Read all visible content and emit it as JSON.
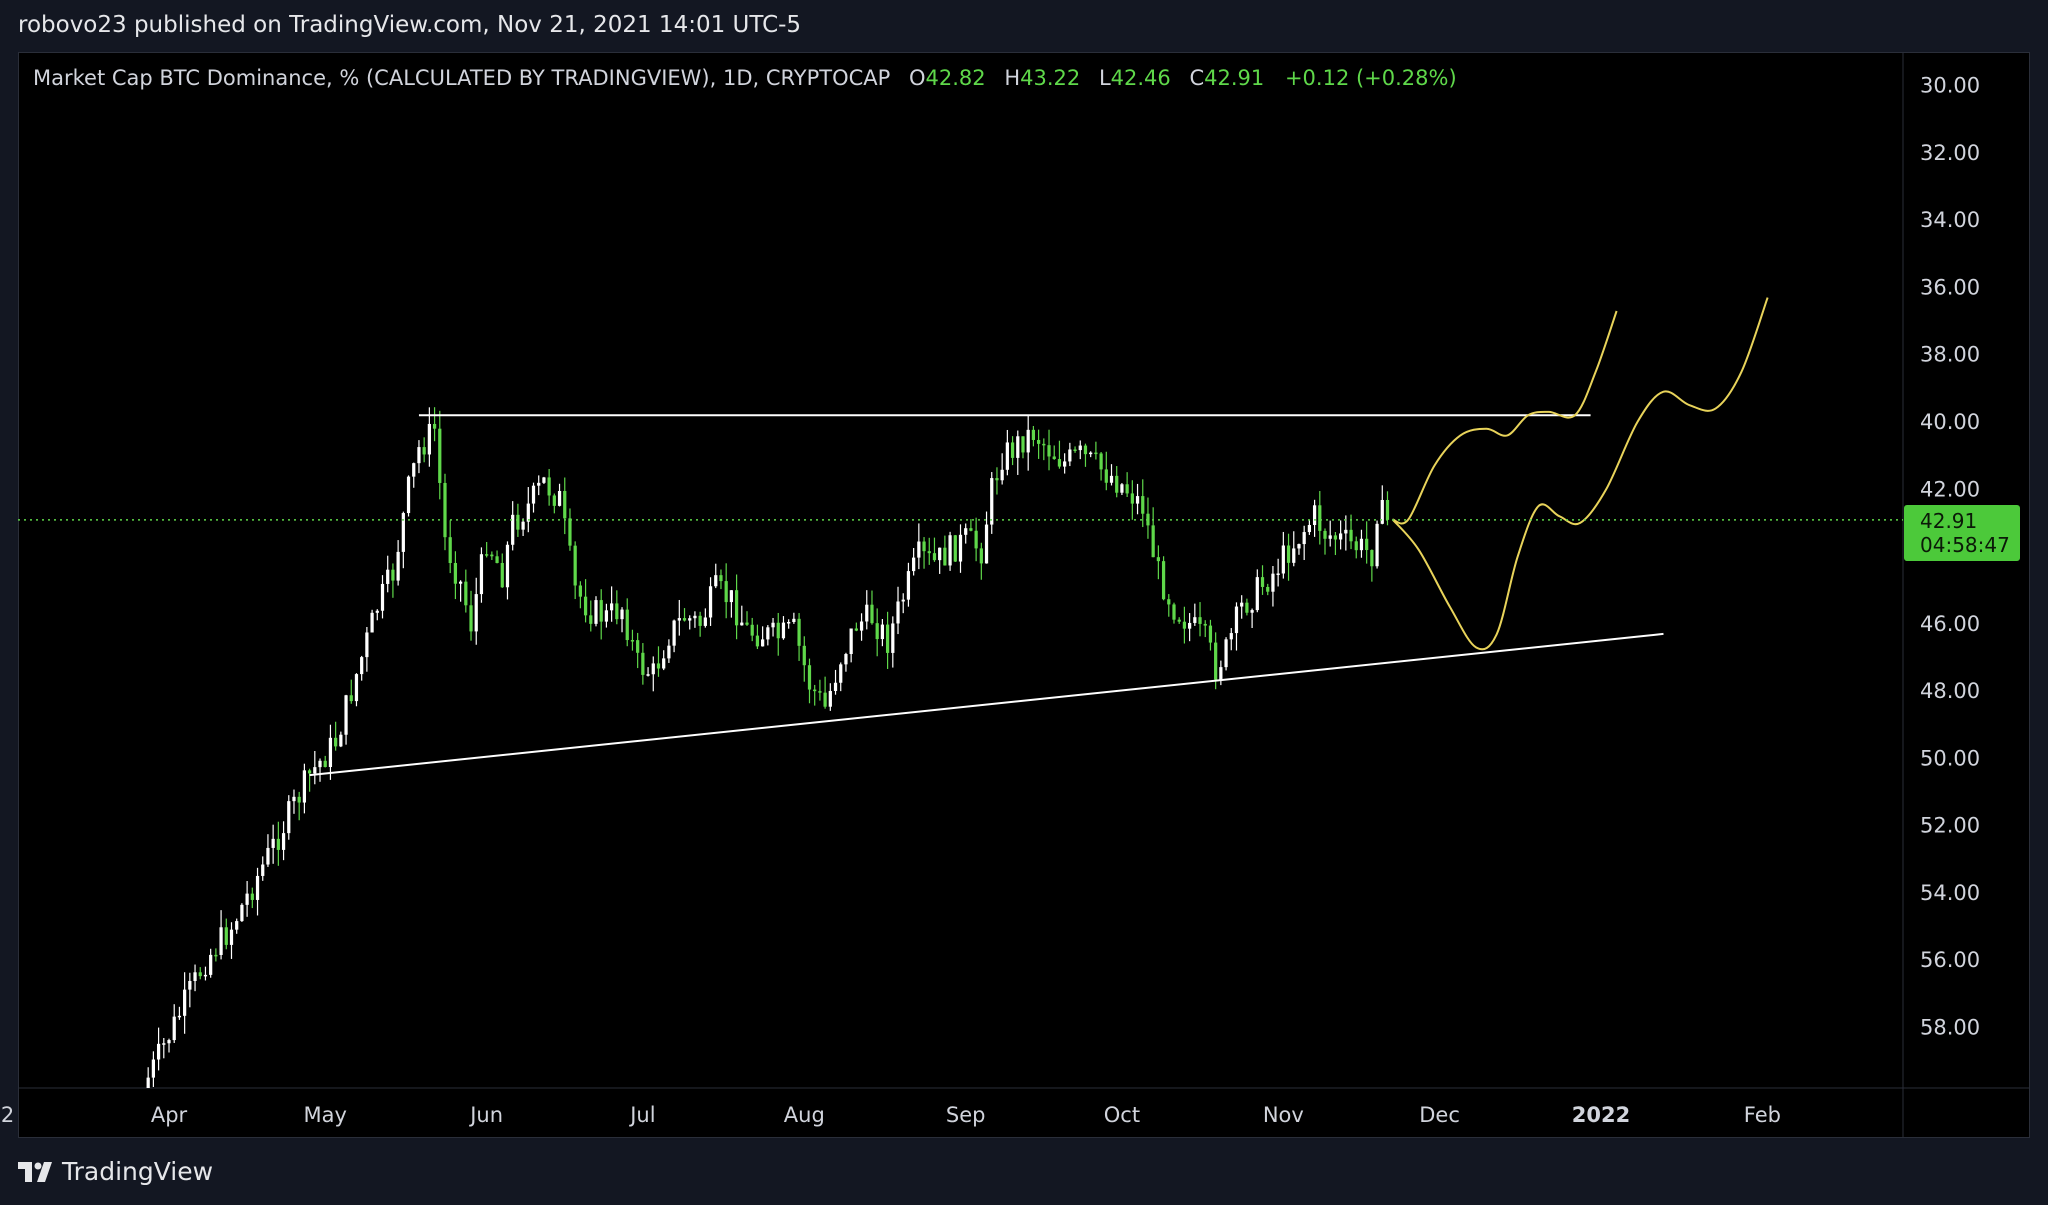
{
  "header": {
    "publisher_line": "robovo23 published on TradingView.com, Nov 21, 2021 14:01 UTC-5"
  },
  "legend": {
    "symbol": "Market Cap BTC Dominance, % (CALCULATED BY TRADINGVIEW), 1D, CRYPTOCAP",
    "open_label": "O",
    "open_value": "42.82",
    "high_label": "H",
    "high_value": "43.22",
    "low_label": "L",
    "low_value": "42.46",
    "close_label": "C",
    "close_value": "42.91",
    "change": "+0.12 (+0.28%)"
  },
  "price_tag": {
    "price": "42.91",
    "countdown": "04:58:47"
  },
  "footer": {
    "brand": "TradingView"
  },
  "colors": {
    "up": "#5fd84a",
    "down": "#ffffff",
    "background": "#000000",
    "trendline": "#ffffff",
    "projection": "#e8d35a",
    "price_line": "#5fd84a"
  },
  "chart_data": {
    "type": "candlestick",
    "title": "Market Cap BTC Dominance, % (CALCULATED BY TRADINGVIEW), 1D, CRYPTOCAP",
    "y_axis": {
      "inverted": true,
      "ylim": [
        29.0,
        59.8
      ],
      "ticks": [
        30.0,
        32.0,
        34.0,
        36.0,
        38.0,
        40.0,
        42.0,
        44.0,
        46.0,
        48.0,
        50.0,
        52.0,
        54.0,
        56.0,
        58.0
      ],
      "tick_labels": [
        "30.00",
        "32.00",
        "34.00",
        "36.00",
        "38.00",
        "40.00",
        "42.00",
        "",
        "46.00",
        "48.00",
        "50.00",
        "52.00",
        "54.00",
        "56.00",
        "58.00"
      ]
    },
    "x_axis": {
      "start": "2021-03-03",
      "end": "2022-02-28",
      "tick_labels": [
        {
          "label": "2",
          "date": "2021-03-01"
        },
        {
          "label": "Apr",
          "date": "2021-04-01"
        },
        {
          "label": "May",
          "date": "2021-05-01"
        },
        {
          "label": "Jun",
          "date": "2021-06-01"
        },
        {
          "label": "Jul",
          "date": "2021-07-01"
        },
        {
          "label": "Aug",
          "date": "2021-08-01"
        },
        {
          "label": "Sep",
          "date": "2021-09-01"
        },
        {
          "label": "Oct",
          "date": "2021-10-01"
        },
        {
          "label": "Nov",
          "date": "2021-11-01"
        },
        {
          "label": "Dec",
          "date": "2021-12-01"
        },
        {
          "label": "2022",
          "date": "2022-01-01",
          "bold": true
        },
        {
          "label": "Feb",
          "date": "2022-02-01"
        }
      ]
    },
    "last_price": 42.91,
    "close_path": [
      {
        "date": "2021-03-28",
        "value": 59.5
      },
      {
        "date": "2021-04-03",
        "value": 57.6
      },
      {
        "date": "2021-04-08",
        "value": 56.0
      },
      {
        "date": "2021-04-13",
        "value": 55.0
      },
      {
        "date": "2021-04-18",
        "value": 53.5
      },
      {
        "date": "2021-04-23",
        "value": 52.0
      },
      {
        "date": "2021-04-28",
        "value": 50.5
      },
      {
        "date": "2021-05-03",
        "value": 49.5
      },
      {
        "date": "2021-05-07",
        "value": 47.5
      },
      {
        "date": "2021-05-11",
        "value": 45.5
      },
      {
        "date": "2021-05-14",
        "value": 44.5
      },
      {
        "date": "2021-05-17",
        "value": 42.0
      },
      {
        "date": "2021-05-19",
        "value": 40.8
      },
      {
        "date": "2021-05-22",
        "value": 40.2
      },
      {
        "date": "2021-05-24",
        "value": 43.5
      },
      {
        "date": "2021-05-27",
        "value": 44.8
      },
      {
        "date": "2021-05-29",
        "value": 46.0
      },
      {
        "date": "2021-06-01",
        "value": 43.5
      },
      {
        "date": "2021-06-04",
        "value": 44.5
      },
      {
        "date": "2021-06-06",
        "value": 43.0
      },
      {
        "date": "2021-06-09",
        "value": 42.5
      },
      {
        "date": "2021-06-12",
        "value": 41.8
      },
      {
        "date": "2021-06-15",
        "value": 42.3
      },
      {
        "date": "2021-06-18",
        "value": 45.0
      },
      {
        "date": "2021-06-21",
        "value": 45.6
      },
      {
        "date": "2021-06-24",
        "value": 45.8
      },
      {
        "date": "2021-06-27",
        "value": 45.5
      },
      {
        "date": "2021-06-30",
        "value": 47.2
      },
      {
        "date": "2021-07-03",
        "value": 47.5
      },
      {
        "date": "2021-07-06",
        "value": 46.3
      },
      {
        "date": "2021-07-09",
        "value": 45.8
      },
      {
        "date": "2021-07-12",
        "value": 46.0
      },
      {
        "date": "2021-07-15",
        "value": 45.0
      },
      {
        "date": "2021-07-18",
        "value": 45.3
      },
      {
        "date": "2021-07-21",
        "value": 46.2
      },
      {
        "date": "2021-07-24",
        "value": 46.3
      },
      {
        "date": "2021-07-27",
        "value": 46.4
      },
      {
        "date": "2021-07-30",
        "value": 46.2
      },
      {
        "date": "2021-08-02",
        "value": 47.8
      },
      {
        "date": "2021-08-05",
        "value": 48.5
      },
      {
        "date": "2021-08-08",
        "value": 47.0
      },
      {
        "date": "2021-08-11",
        "value": 46.0
      },
      {
        "date": "2021-08-14",
        "value": 45.8
      },
      {
        "date": "2021-08-17",
        "value": 46.5
      },
      {
        "date": "2021-08-20",
        "value": 45.2
      },
      {
        "date": "2021-08-23",
        "value": 44.0
      },
      {
        "date": "2021-08-26",
        "value": 44.2
      },
      {
        "date": "2021-08-29",
        "value": 43.8
      },
      {
        "date": "2021-09-01",
        "value": 43.5
      },
      {
        "date": "2021-09-04",
        "value": 43.8
      },
      {
        "date": "2021-09-06",
        "value": 42.0
      },
      {
        "date": "2021-09-08",
        "value": 41.0
      },
      {
        "date": "2021-09-10",
        "value": 40.8
      },
      {
        "date": "2021-09-12",
        "value": 40.5
      },
      {
        "date": "2021-09-14",
        "value": 40.3
      },
      {
        "date": "2021-09-17",
        "value": 40.8
      },
      {
        "date": "2021-09-20",
        "value": 41.2
      },
      {
        "date": "2021-09-23",
        "value": 41.0
      },
      {
        "date": "2021-09-26",
        "value": 41.3
      },
      {
        "date": "2021-09-29",
        "value": 41.6
      },
      {
        "date": "2021-10-02",
        "value": 42.0
      },
      {
        "date": "2021-10-05",
        "value": 42.5
      },
      {
        "date": "2021-10-08",
        "value": 44.5
      },
      {
        "date": "2021-10-11",
        "value": 45.5
      },
      {
        "date": "2021-10-14",
        "value": 46.0
      },
      {
        "date": "2021-10-17",
        "value": 46.5
      },
      {
        "date": "2021-10-19",
        "value": 47.3
      },
      {
        "date": "2021-10-21",
        "value": 46.8
      },
      {
        "date": "2021-10-24",
        "value": 45.5
      },
      {
        "date": "2021-10-27",
        "value": 45.0
      },
      {
        "date": "2021-10-30",
        "value": 44.5
      },
      {
        "date": "2021-11-02",
        "value": 43.8
      },
      {
        "date": "2021-11-05",
        "value": 43.2
      },
      {
        "date": "2021-11-07",
        "value": 42.8
      },
      {
        "date": "2021-11-09",
        "value": 43.3
      },
      {
        "date": "2021-11-12",
        "value": 43.5
      },
      {
        "date": "2021-11-15",
        "value": 43.7
      },
      {
        "date": "2021-11-18",
        "value": 43.9
      },
      {
        "date": "2021-11-19",
        "value": 42.6
      },
      {
        "date": "2021-11-21",
        "value": 42.91
      }
    ],
    "annotations": {
      "resistance_line": {
        "from": {
          "date": "2021-05-19",
          "value": 39.8
        },
        "to": {
          "date": "2021-12-30",
          "value": 39.8
        }
      },
      "support_trendline": {
        "from": {
          "date": "2021-04-28",
          "value": 50.5
        },
        "to": {
          "date": "2022-01-13",
          "value": 46.3
        }
      },
      "projection_1": [
        {
          "date": "2021-11-22",
          "value": 42.9
        },
        {
          "date": "2021-11-25",
          "value": 42.9
        },
        {
          "date": "2021-11-30",
          "value": 41.3
        },
        {
          "date": "2021-12-05",
          "value": 40.4
        },
        {
          "date": "2021-12-10",
          "value": 40.2
        },
        {
          "date": "2021-12-14",
          "value": 40.4
        },
        {
          "date": "2021-12-18",
          "value": 39.8
        },
        {
          "date": "2021-12-22",
          "value": 39.7
        },
        {
          "date": "2021-12-27",
          "value": 39.8
        },
        {
          "date": "2021-12-31",
          "value": 38.5
        },
        {
          "date": "2022-01-04",
          "value": 36.7
        }
      ],
      "projection_2": [
        {
          "date": "2021-11-22",
          "value": 42.9
        },
        {
          "date": "2021-11-27",
          "value": 43.8
        },
        {
          "date": "2021-12-03",
          "value": 45.5
        },
        {
          "date": "2021-12-08",
          "value": 46.7
        },
        {
          "date": "2021-12-12",
          "value": 46.3
        },
        {
          "date": "2021-12-16",
          "value": 44.0
        },
        {
          "date": "2021-12-20",
          "value": 42.5
        },
        {
          "date": "2021-12-24",
          "value": 42.8
        },
        {
          "date": "2021-12-28",
          "value": 43.0
        },
        {
          "date": "2022-01-02",
          "value": 42.0
        },
        {
          "date": "2022-01-08",
          "value": 40.0
        },
        {
          "date": "2022-01-13",
          "value": 39.1
        },
        {
          "date": "2022-01-18",
          "value": 39.5
        },
        {
          "date": "2022-01-23",
          "value": 39.6
        },
        {
          "date": "2022-01-28",
          "value": 38.5
        },
        {
          "date": "2022-02-02",
          "value": 36.3
        }
      ]
    }
  }
}
